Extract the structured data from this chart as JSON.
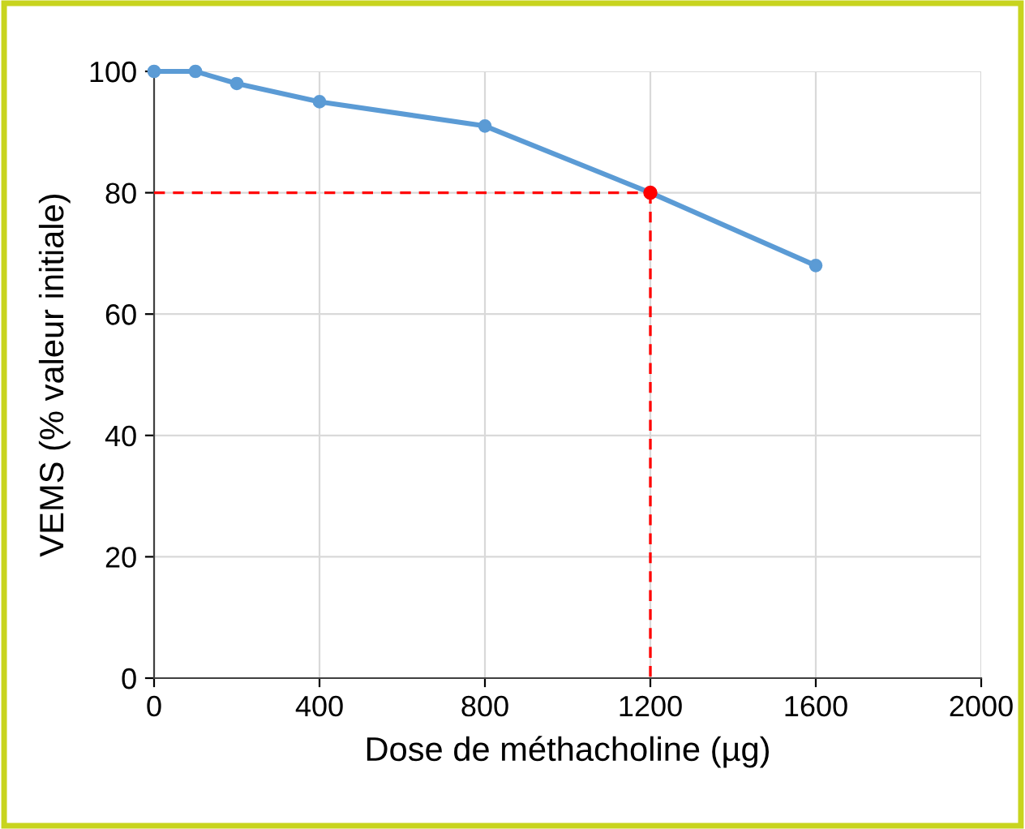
{
  "chart_data": {
    "type": "line",
    "xlabel": "Dose de méthacholine (µg)",
    "ylabel": "VEMS (% valeur initiale)",
    "xlim": [
      0,
      2000
    ],
    "xticks": [
      0,
      400,
      800,
      1200,
      1600,
      2000
    ],
    "ylim": [
      0,
      100
    ],
    "yticks": [
      0,
      20,
      40,
      60,
      80,
      100
    ],
    "grid": true,
    "marker": "circle",
    "series": [
      {
        "color": "#5b9bd5",
        "x": [
          0,
          100,
          200,
          400,
          800,
          1200,
          1600
        ],
        "values": [
          100,
          100,
          98,
          95,
          91,
          80,
          68
        ]
      },
      {
        "color": "#ff0000",
        "x": [
          0,
          1200
        ],
        "values": [
          80,
          80
        ],
        "line_style": "dashed",
        "marker": "none"
      },
      {
        "color": "#ff0000",
        "x": [
          1200,
          1200
        ],
        "values": [
          80,
          0
        ],
        "line_style": "dashed",
        "marker": "none"
      },
      {
        "type": "scatter",
        "color": "#ff0000",
        "x": [
          1200
        ],
        "values": [
          80
        ]
      }
    ]
  }
}
